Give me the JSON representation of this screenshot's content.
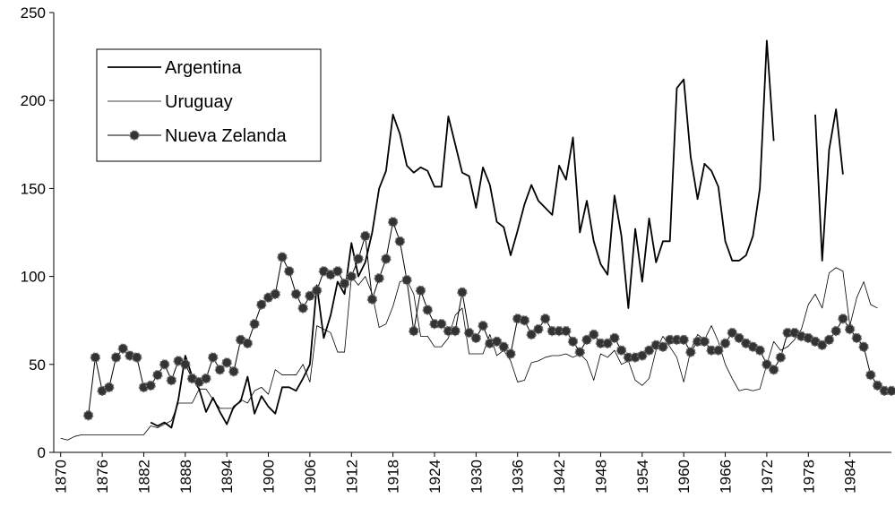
{
  "chart_data": {
    "type": "line",
    "x": [
      1870,
      1871,
      1872,
      1873,
      1874,
      1875,
      1876,
      1877,
      1878,
      1879,
      1880,
      1881,
      1882,
      1883,
      1884,
      1885,
      1886,
      1887,
      1888,
      1889,
      1890,
      1891,
      1892,
      1893,
      1894,
      1895,
      1896,
      1897,
      1898,
      1899,
      1900,
      1901,
      1902,
      1903,
      1904,
      1905,
      1906,
      1907,
      1908,
      1909,
      1910,
      1911,
      1912,
      1913,
      1914,
      1915,
      1916,
      1917,
      1918,
      1919,
      1920,
      1921,
      1922,
      1923,
      1924,
      1925,
      1926,
      1927,
      1928,
      1929,
      1930,
      1931,
      1932,
      1933,
      1934,
      1935,
      1936,
      1937,
      1938,
      1939,
      1940,
      1941,
      1942,
      1943,
      1944,
      1945,
      1946,
      1947,
      1948,
      1949,
      1950,
      1951,
      1952,
      1953,
      1954,
      1955,
      1956,
      1957,
      1958,
      1959,
      1960,
      1961,
      1962,
      1963,
      1964,
      1965,
      1966,
      1967,
      1968,
      1969,
      1970,
      1971,
      1972,
      1973,
      1974,
      1975,
      1976,
      1977,
      1978,
      1979,
      1980,
      1981,
      1982,
      1983,
      1984,
      1985,
      1986,
      1987,
      1988,
      1989,
      1990
    ],
    "series": [
      {
        "name": "Argentina",
        "color": "#000000",
        "width": 1.8,
        "marker": false,
        "values": [
          null,
          null,
          null,
          null,
          null,
          null,
          null,
          null,
          null,
          null,
          null,
          null,
          null,
          17,
          15,
          17,
          14,
          30,
          55,
          43,
          36,
          23,
          31,
          23,
          16,
          26,
          29,
          43,
          22,
          32,
          26,
          22,
          37,
          37,
          35,
          42,
          50,
          95,
          65,
          78,
          97,
          90,
          119,
          100,
          108,
          125,
          150,
          160,
          192,
          181,
          163,
          159,
          162,
          160,
          151,
          151,
          191,
          175,
          159,
          157,
          139,
          162,
          152,
          131,
          128,
          112,
          126,
          141,
          152,
          143,
          139,
          135,
          163,
          155,
          179,
          125,
          143,
          120,
          107,
          101,
          146,
          123,
          82,
          127,
          97,
          133,
          108,
          120,
          120,
          207,
          212,
          168,
          144,
          164,
          160,
          151,
          120,
          109,
          109,
          112,
          123,
          150,
          234,
          177,
          null,
          null,
          null,
          null,
          null,
          192,
          109,
          172,
          195,
          158,
          null,
          null,
          null,
          null,
          null,
          null,
          null
        ]
      },
      {
        "name": "Uruguay",
        "color": "#000000",
        "width": 0.8,
        "marker": false,
        "values": [
          8,
          7,
          9,
          10,
          10,
          10,
          10,
          10,
          10,
          10,
          10,
          10,
          10,
          15,
          14,
          16,
          18,
          28,
          28,
          28,
          36,
          36,
          30,
          25,
          25,
          25,
          30,
          28,
          35,
          37,
          33,
          47,
          44,
          44,
          44,
          50,
          40,
          72,
          70,
          68,
          57,
          57,
          100,
          95,
          100,
          90,
          71,
          73,
          83,
          97,
          98,
          90,
          66,
          66,
          60,
          60,
          65,
          78,
          82,
          56,
          56,
          56,
          67,
          55,
          58,
          52,
          40,
          41,
          51,
          52,
          54,
          55,
          55,
          56,
          54,
          56,
          52,
          41,
          56,
          54,
          58,
          50,
          52,
          41,
          38,
          42,
          58,
          66,
          60,
          54,
          40,
          58,
          67,
          64,
          72,
          63,
          50,
          42,
          35,
          36,
          35,
          36,
          50,
          63,
          58,
          60,
          64,
          70,
          84,
          90,
          82,
          102,
          105,
          103,
          72,
          88,
          97,
          84,
          82,
          null,
          null
        ]
      },
      {
        "name": "Nueva Zelanda",
        "color": "#000000",
        "width": 1,
        "marker": true,
        "values": [
          null,
          null,
          null,
          null,
          21,
          54,
          35,
          37,
          54,
          59,
          55,
          54,
          37,
          38,
          44,
          50,
          41,
          52,
          50,
          42,
          40,
          42,
          54,
          47,
          51,
          46,
          64,
          62,
          73,
          84,
          88,
          90,
          111,
          103,
          90,
          82,
          89,
          92,
          103,
          101,
          103,
          96,
          100,
          110,
          123,
          87,
          99,
          110,
          131,
          120,
          98,
          69,
          92,
          81,
          73,
          73,
          69,
          69,
          91,
          68,
          65,
          72,
          62,
          63,
          60,
          56,
          76,
          75,
          67,
          70,
          76,
          69,
          69,
          69,
          63,
          57,
          64,
          67,
          62,
          62,
          65,
          58,
          54,
          54,
          55,
          58,
          61,
          60,
          64,
          64,
          64,
          57,
          63,
          63,
          58,
          58,
          62,
          68,
          65,
          62,
          60,
          58,
          50,
          47,
          54,
          68,
          68,
          66,
          65,
          63,
          61,
          64,
          69,
          76,
          70,
          65,
          60,
          44,
          38,
          35,
          35
        ]
      }
    ],
    "xlim": [
      1869,
      1990
    ],
    "xticks": [
      1870,
      1876,
      1882,
      1888,
      1894,
      1900,
      1906,
      1912,
      1918,
      1924,
      1930,
      1936,
      1942,
      1948,
      1954,
      1960,
      1966,
      1972,
      1978,
      1984
    ],
    "ylim": [
      0,
      250
    ],
    "yticks": [
      0,
      50,
      100,
      150,
      200,
      250
    ],
    "grid": false,
    "legend": "upper left"
  }
}
